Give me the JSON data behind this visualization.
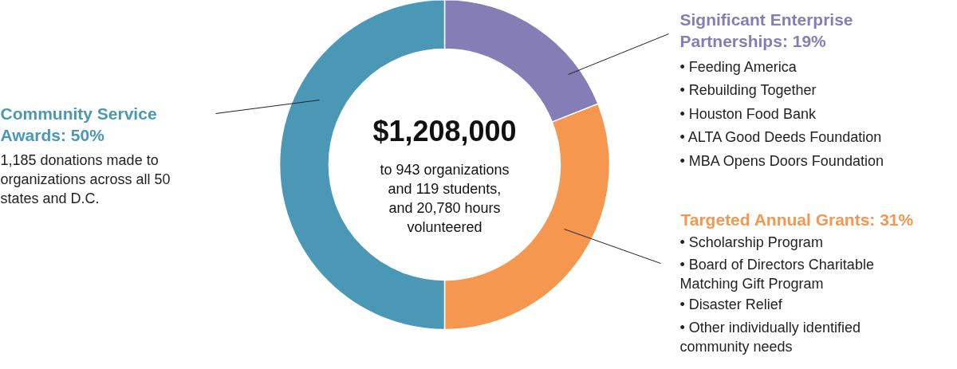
{
  "chart_data": {
    "type": "donut",
    "title": "$1,208,000",
    "categories": [
      "Significant Enterprise Partnerships",
      "Targeted Annual Grants",
      "Community Service Awards"
    ],
    "values": [
      19,
      31,
      50
    ],
    "value_labels": [
      "19%",
      "31%",
      "50%"
    ],
    "colors": [
      "#857db5",
      "#f5974f",
      "#4a98b5"
    ],
    "annotations": [
      "to 943 organizations and 119 students, and 20,780 hours volunteered",
      "1,185 donations made to organizations across all 50 states and D.C.",
      "• Feeding America",
      "• Rebuilding Together",
      "• Houston Food Bank",
      "• ALTA Good Deeds Foundation",
      "• MBA Opens Doors Foundation",
      "• Scholarship Program",
      "• Board of Directors Charitable Matching Gift Program",
      "• Disaster Relief",
      "• Other individually identified community needs"
    ]
  }
}
